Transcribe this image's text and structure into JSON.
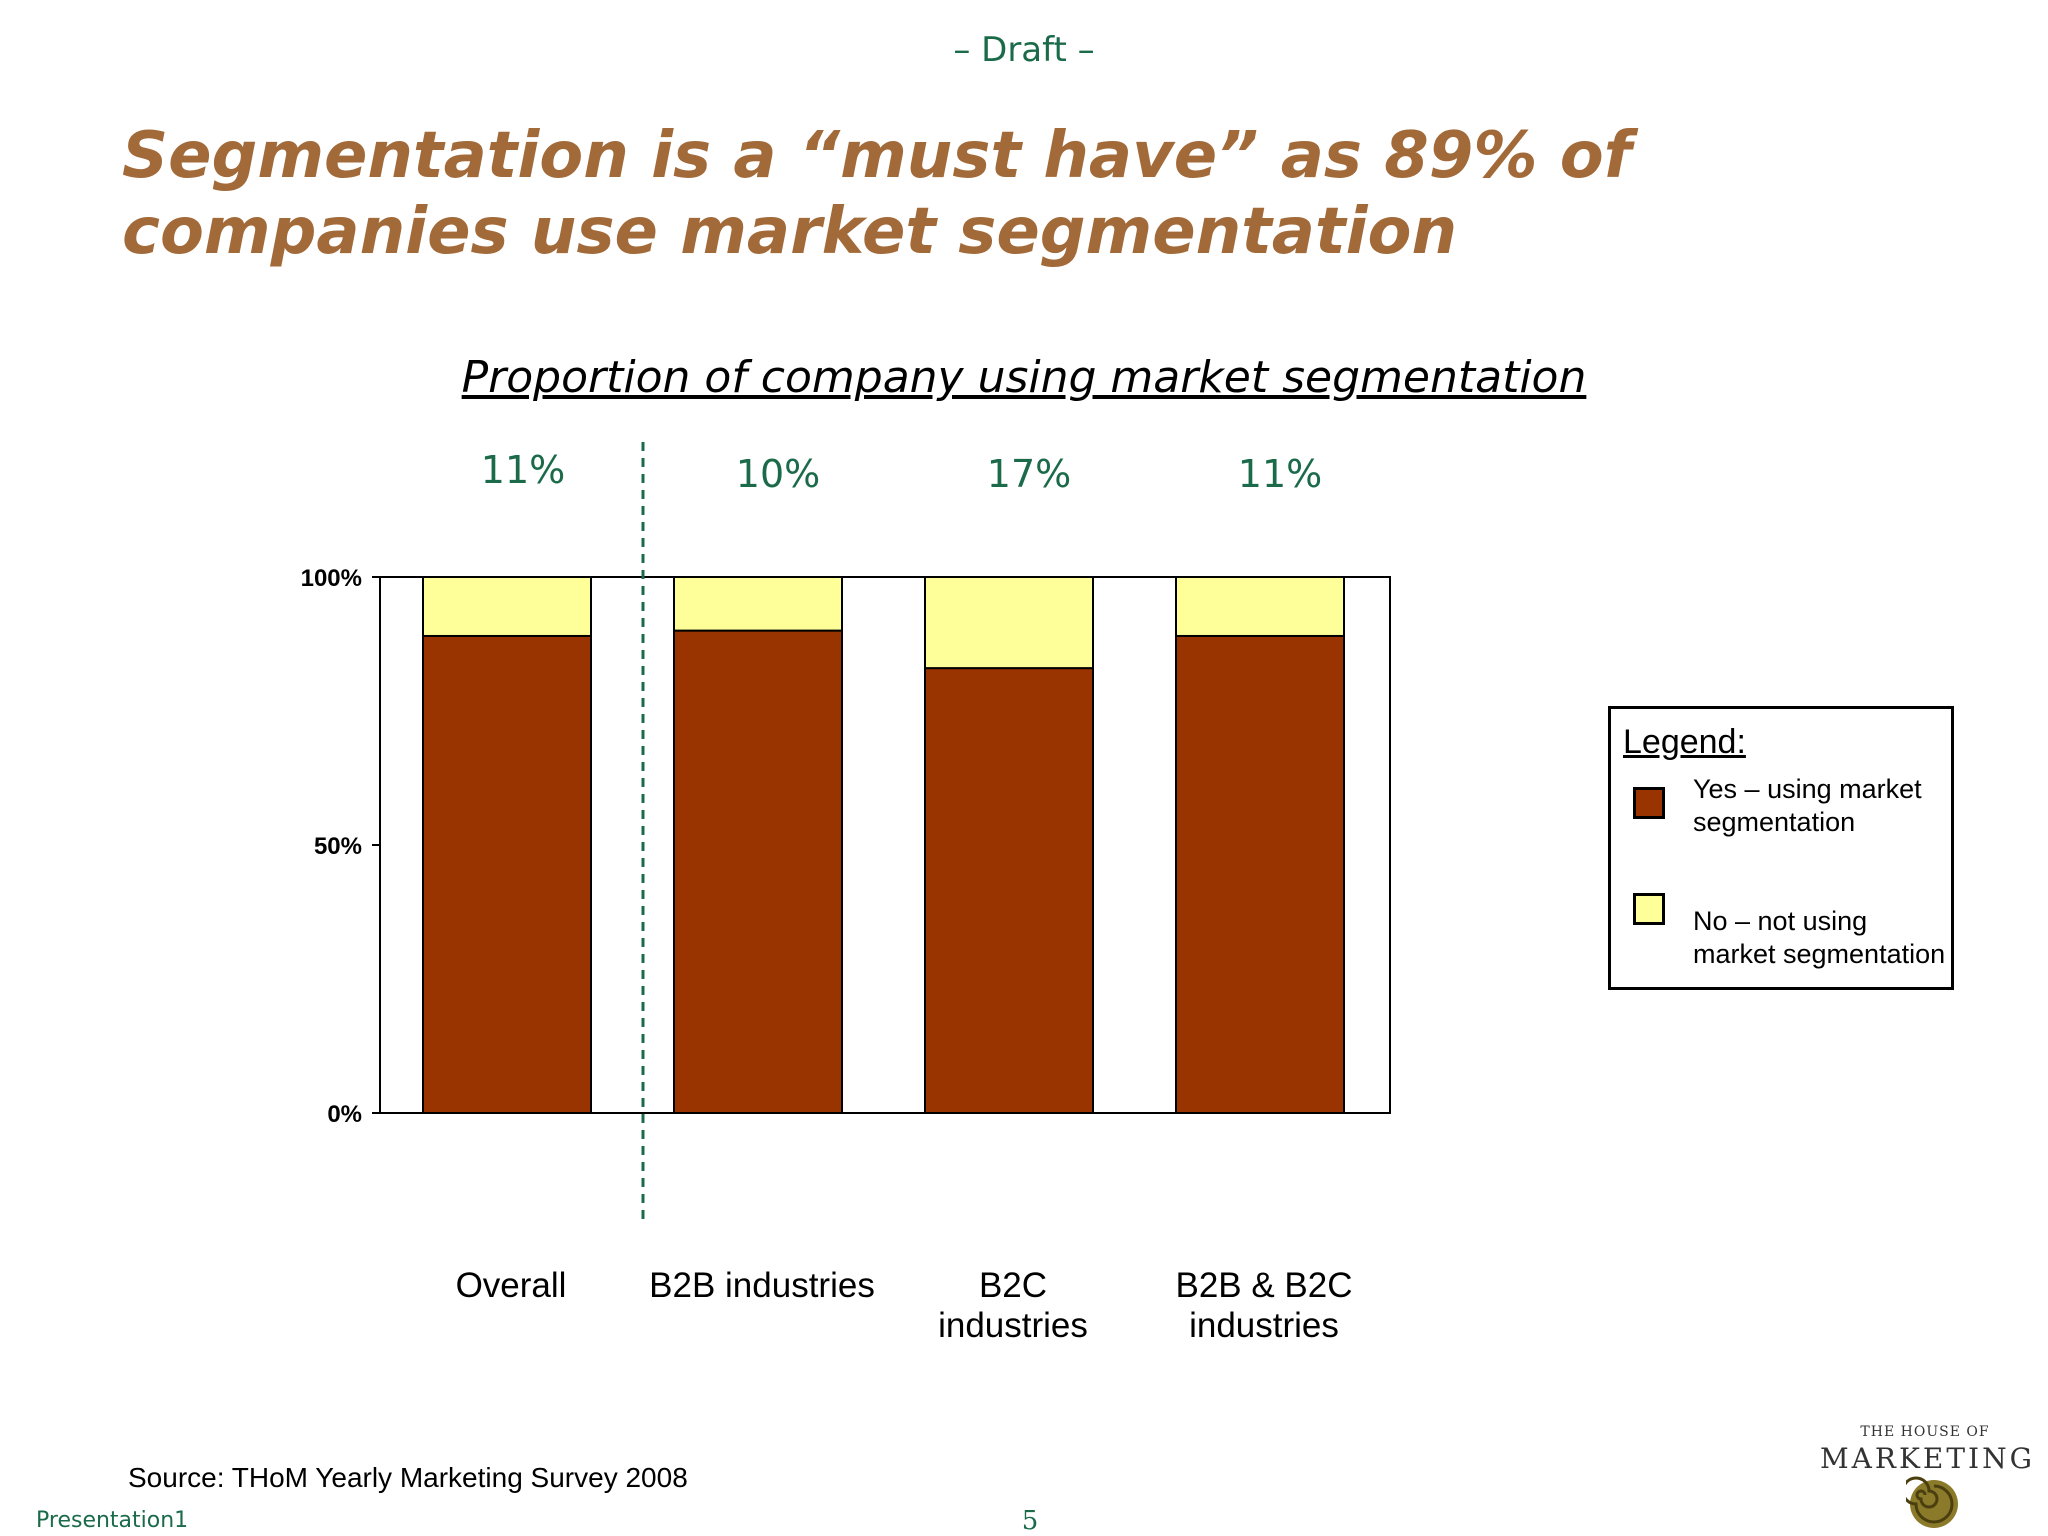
{
  "header": {
    "draft_label": "– Draft –"
  },
  "title": "Segmentation is a “must have” as 89% of companies use market segmentation",
  "chart_data": {
    "type": "bar",
    "stacked": true,
    "title": "Proportion of company using market segmentation",
    "categories": [
      "Overall",
      "B2B industries",
      "B2C industries",
      "B2B & B2C industries"
    ],
    "category_lines": [
      [
        "Overall"
      ],
      [
        "B2B industries"
      ],
      [
        "B2C",
        "industries"
      ],
      [
        "B2B & B2C",
        "industries"
      ]
    ],
    "series": [
      {
        "name": "Yes – using market segmentation",
        "values": [
          89,
          90,
          83,
          89
        ],
        "color": "#993300"
      },
      {
        "name": "No – not using market segmentation",
        "values": [
          11,
          10,
          17,
          11
        ],
        "color": "#ffff99"
      }
    ],
    "top_labels": [
      "11%",
      "10%",
      "17%",
      "11%"
    ],
    "yticks": [
      {
        "value": 0,
        "label": "0%"
      },
      {
        "value": 50,
        "label": "50%"
      },
      {
        "value": 100,
        "label": "100%"
      }
    ],
    "ylim": [
      0,
      100
    ],
    "xlabel": "",
    "ylabel": "",
    "grid": false,
    "legend_position": "right",
    "separator": "dashed line between Overall and B2B industries"
  },
  "legend": {
    "title": "Legend:",
    "items": [
      {
        "lines": [
          "Yes – using market",
          "segmentation"
        ],
        "color": "#993300"
      },
      {
        "lines": [
          "No – not using",
          "market segmentation"
        ],
        "color": "#ffff99"
      }
    ]
  },
  "source": "Source: THoM Yearly Marketing Survey 2008",
  "footer": {
    "file_name": "Presentation1",
    "page_number": "5"
  },
  "logo": {
    "top_line": "THE HOUSE OF",
    "main_line": "MARKETING"
  },
  "colors": {
    "title": "#a36a39",
    "accent_green": "#1b6b4a",
    "bar_yes": "#993300",
    "bar_no": "#ffff99"
  }
}
